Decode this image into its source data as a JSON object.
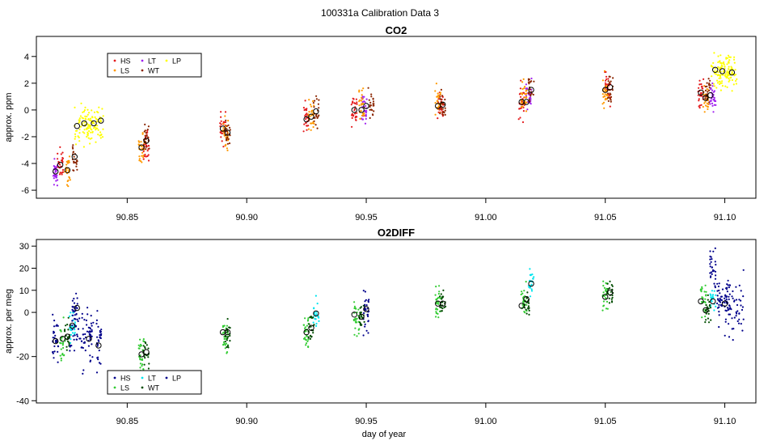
{
  "figure_title": "100331a   Calibration Data 3",
  "xlabel": "day of year",
  "x_ticks": [
    "90.85",
    "90.90",
    "90.95",
    "91.00",
    "91.05",
    "91.10"
  ],
  "x_tick_values": [
    90.85,
    90.9,
    90.95,
    91.0,
    91.05,
    91.1
  ],
  "xlim": [
    90.812,
    91.113
  ],
  "colors": {
    "HS": "#e41a1c",
    "LS": "#ff9900",
    "LT": "#a020f0",
    "WT": "#8b2500",
    "LP": "#ffff00",
    "HS2": "#00008b",
    "LS2": "#33cc33",
    "LT2": "#00e5ee",
    "WT2": "#004d00",
    "LP2": "#00008b"
  },
  "chart_data": [
    {
      "type": "scatter",
      "title": "CO2",
      "ylabel": "approx. ppm",
      "ylim": [
        -6.6,
        5.5
      ],
      "y_ticks": [
        "-6",
        "-4",
        "-2",
        "0",
        "2",
        "4"
      ],
      "y_tick_values": [
        -6,
        -4,
        -2,
        0,
        2,
        4
      ],
      "legend": {
        "placement": "top-left",
        "entries": [
          {
            "label": "HS",
            "color": "#e41a1c"
          },
          {
            "label": "LT",
            "color": "#a020f0"
          },
          {
            "label": "LP",
            "color": "#ffff00"
          },
          {
            "label": "LS",
            "color": "#ff9900"
          },
          {
            "label": "WT",
            "color": "#8b2500"
          }
        ]
      },
      "series": [
        {
          "name": "LT",
          "color": "#a020f0",
          "points": [
            [
              90.82,
              -4.8
            ],
            [
              90.949,
              0.1
            ],
            [
              91.018,
              1.2
            ],
            [
              91.095,
              0.9
            ]
          ],
          "spread": 0.5,
          "n": 28
        },
        {
          "name": "HS",
          "color": "#e41a1c",
          "points": [
            [
              90.822,
              -4.2
            ],
            [
              90.858,
              -2.4
            ],
            [
              90.89,
              -1.4
            ],
            [
              90.925,
              -0.6
            ],
            [
              90.945,
              0.1
            ],
            [
              90.981,
              0.3
            ],
            [
              91.015,
              0.6
            ],
            [
              91.051,
              1.8
            ],
            [
              91.09,
              1.2
            ]
          ],
          "spread": 0.6,
          "n": 28
        },
        {
          "name": "LS",
          "color": "#ff9900",
          "points": [
            [
              90.825,
              -4.4
            ],
            [
              90.856,
              -2.9
            ],
            [
              90.891,
              -1.8
            ],
            [
              90.927,
              -0.5
            ],
            [
              90.948,
              0.2
            ],
            [
              90.98,
              0.5
            ],
            [
              91.016,
              0.8
            ],
            [
              91.05,
              1.4
            ],
            [
              91.092,
              1.0
            ]
          ],
          "spread": 0.6,
          "n": 28
        },
        {
          "name": "WT",
          "color": "#8b2500",
          "points": [
            [
              90.828,
              -3.6
            ],
            [
              90.858,
              -2.2
            ],
            [
              90.892,
              -1.8
            ],
            [
              90.929,
              -0.2
            ],
            [
              90.952,
              0.4
            ],
            [
              90.982,
              0.4
            ],
            [
              91.019,
              1.6
            ],
            [
              91.052,
              1.6
            ],
            [
              91.093,
              1.3
            ]
          ],
          "spread": 0.5,
          "n": 22
        },
        {
          "name": "LP",
          "color": "#ffff00",
          "points": [
            [
              90.832,
              -1.1
            ],
            [
              90.836,
              -1.0
            ],
            [
              91.098,
              2.9
            ],
            [
              91.101,
              2.9
            ]
          ],
          "spread": 0.7,
          "n": 60,
          "jitter_x": 0.004
        }
      ],
      "means": [
        [
          90.82,
          -4.6
        ],
        [
          90.822,
          -4.1
        ],
        [
          90.825,
          -4.5
        ],
        [
          90.828,
          -3.5
        ],
        [
          90.829,
          -1.2
        ],
        [
          90.832,
          -1.0
        ],
        [
          90.836,
          -1.0
        ],
        [
          90.839,
          -0.8
        ],
        [
          90.856,
          -2.8
        ],
        [
          90.858,
          -2.3
        ],
        [
          90.89,
          -1.4
        ],
        [
          90.892,
          -1.7
        ],
        [
          90.925,
          -0.7
        ],
        [
          90.927,
          -0.5
        ],
        [
          90.929,
          -0.1
        ],
        [
          90.945,
          0.0
        ],
        [
          90.948,
          0.0
        ],
        [
          90.95,
          0.3
        ],
        [
          90.98,
          0.3
        ],
        [
          90.982,
          0.4
        ],
        [
          91.015,
          0.6
        ],
        [
          91.017,
          0.6
        ],
        [
          91.019,
          1.5
        ],
        [
          91.05,
          1.5
        ],
        [
          91.052,
          1.7
        ],
        [
          91.09,
          1.3
        ],
        [
          91.092,
          0.9
        ],
        [
          91.094,
          1.1
        ],
        [
          91.096,
          3.0
        ],
        [
          91.099,
          2.9
        ],
        [
          91.103,
          2.8
        ]
      ]
    },
    {
      "type": "scatter",
      "title": "O2DIFF",
      "ylabel": "approx. per meg",
      "ylim": [
        -41,
        33
      ],
      "y_ticks": [
        "-40",
        "-20",
        "0",
        "10",
        "20",
        "30"
      ],
      "y_tick_values": [
        -40,
        -20,
        0,
        10,
        20,
        30
      ],
      "legend": {
        "placement": "bottom-left",
        "entries": [
          {
            "label": "HS",
            "color": "#00008b"
          },
          {
            "label": "LT",
            "color": "#00e5ee"
          },
          {
            "label": "LP",
            "color": "#00008b"
          },
          {
            "label": "LS",
            "color": "#33cc33"
          },
          {
            "label": "WT",
            "color": "#004d00"
          }
        ]
      },
      "series": [
        {
          "name": "HS",
          "color": "#00008b",
          "points": [
            [
              90.82,
              -12.5
            ],
            [
              90.828,
              2.0
            ],
            [
              90.835,
              -12.0
            ],
            [
              90.838,
              -14.0
            ],
            [
              90.95,
              1.5
            ],
            [
              91.095,
              20.0
            ],
            [
              91.098,
              6.0
            ],
            [
              91.101,
              4.0
            ]
          ],
          "spread": 5.0,
          "n": 30
        },
        {
          "name": "LS",
          "color": "#33cc33",
          "points": [
            [
              90.823,
              -12.0
            ],
            [
              90.856,
              -19.0
            ],
            [
              90.891,
              -9.0
            ],
            [
              90.925,
              -9.0
            ],
            [
              90.946,
              -3.0
            ],
            [
              90.98,
              4.0
            ],
            [
              91.016,
              4.0
            ],
            [
              91.05,
              7.0
            ],
            [
              91.091,
              5.0
            ]
          ],
          "spread": 4.0,
          "n": 28
        },
        {
          "name": "LT",
          "color": "#00e5ee",
          "points": [
            [
              90.827,
              -6.0
            ],
            [
              90.929,
              -1.0
            ],
            [
              91.019,
              13.0
            ],
            [
              91.095,
              5.0
            ]
          ],
          "spread": 3.0,
          "n": 22
        },
        {
          "name": "WT",
          "color": "#004d00",
          "points": [
            [
              90.825,
              -11.0
            ],
            [
              90.858,
              -18.0
            ],
            [
              90.892,
              -9.0
            ],
            [
              90.927,
              -7.0
            ],
            [
              90.948,
              -2.0
            ],
            [
              90.982,
              4.0
            ],
            [
              91.017,
              4.0
            ],
            [
              91.052,
              9.0
            ],
            [
              91.093,
              1.0
            ]
          ],
          "spread": 3.0,
          "n": 22
        },
        {
          "name": "LP",
          "color": "#00008b",
          "points": [
            [
              90.83,
              -10.0
            ],
            [
              91.104,
              3.0
            ]
          ],
          "spread": 7.0,
          "n": 50,
          "jitter_x": 0.004
        }
      ],
      "means": [
        [
          90.82,
          -13.0
        ],
        [
          90.823,
          -12.0
        ],
        [
          90.825,
          -11.0
        ],
        [
          90.827,
          -6.0
        ],
        [
          90.829,
          2.0
        ],
        [
          90.834,
          -12.0
        ],
        [
          90.838,
          -15.0
        ],
        [
          90.856,
          -19.0
        ],
        [
          90.858,
          -18.0
        ],
        [
          90.89,
          -9.0
        ],
        [
          90.892,
          -9.0
        ],
        [
          90.925,
          -9.0
        ],
        [
          90.927,
          -7.0
        ],
        [
          90.929,
          -0.5
        ],
        [
          90.945,
          -1.0
        ],
        [
          90.948,
          -2.0
        ],
        [
          90.95,
          1.5
        ],
        [
          90.98,
          4.0
        ],
        [
          90.982,
          4.0
        ],
        [
          91.015,
          3.0
        ],
        [
          91.017,
          6.0
        ],
        [
          91.019,
          13.0
        ],
        [
          91.05,
          7.0
        ],
        [
          91.052,
          9.0
        ],
        [
          91.09,
          5.0
        ],
        [
          91.092,
          1.0
        ],
        [
          91.095,
          5.0
        ],
        [
          91.1,
          4.0
        ]
      ]
    }
  ]
}
